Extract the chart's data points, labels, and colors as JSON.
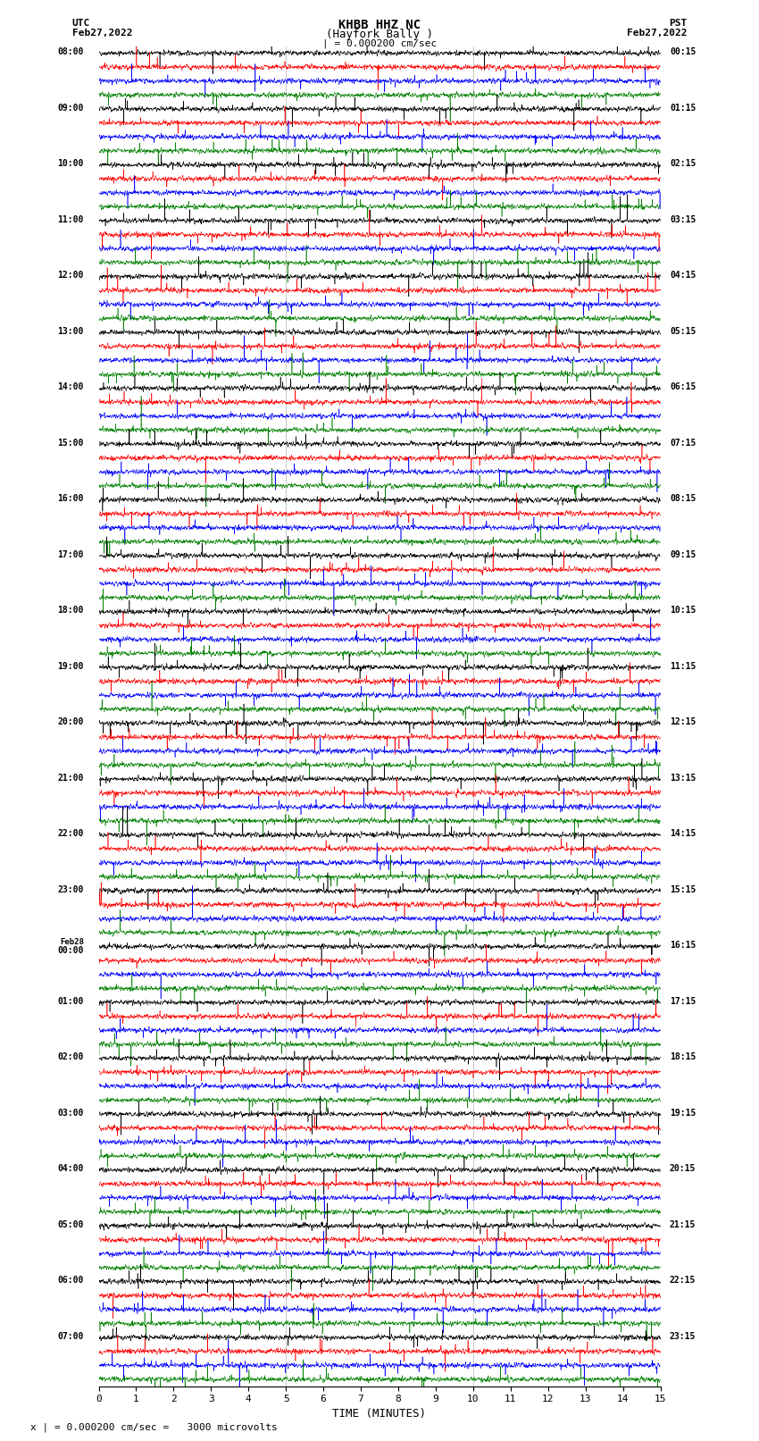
{
  "title_line1": "KHBB HHZ NC",
  "title_line2": "(Hayfork Bally )",
  "title_line3": "| = 0.000200 cm/sec",
  "left_label_top": "UTC",
  "left_label_date": "Feb27,2022",
  "right_label_top": "PST",
  "right_label_date": "Feb27,2022",
  "bottom_label": "TIME (MINUTES)",
  "footer_text": "x | = 0.000200 cm/sec =   3000 microvolts",
  "xlabel_ticks": [
    0,
    1,
    2,
    3,
    4,
    5,
    6,
    7,
    8,
    9,
    10,
    11,
    12,
    13,
    14,
    15
  ],
  "trace_colors": [
    "black",
    "red",
    "blue",
    "green"
  ],
  "background_color": "white",
  "num_blocks": 24,
  "traces_per_block": 4,
  "minutes": 15,
  "amplitude_scale": 0.28,
  "noise_seed": 42,
  "samples": 3000,
  "utc_labels": [
    "08:00",
    "09:00",
    "10:00",
    "11:00",
    "12:00",
    "13:00",
    "14:00",
    "15:00",
    "16:00",
    "17:00",
    "18:00",
    "19:00",
    "20:00",
    "21:00",
    "22:00",
    "23:00",
    "Feb28\n00:00",
    "01:00",
    "02:00",
    "03:00",
    "04:00",
    "05:00",
    "06:00",
    "07:00"
  ],
  "pst_labels": [
    "00:15",
    "01:15",
    "02:15",
    "03:15",
    "04:15",
    "05:15",
    "06:15",
    "07:15",
    "08:15",
    "09:15",
    "10:15",
    "11:15",
    "12:15",
    "13:15",
    "14:15",
    "15:15",
    "16:15",
    "17:15",
    "18:15",
    "19:15",
    "20:15",
    "21:15",
    "22:15",
    "23:15"
  ],
  "vline_positions": [
    5,
    10
  ],
  "vline_color": "gray",
  "vline_lw": 0.5
}
